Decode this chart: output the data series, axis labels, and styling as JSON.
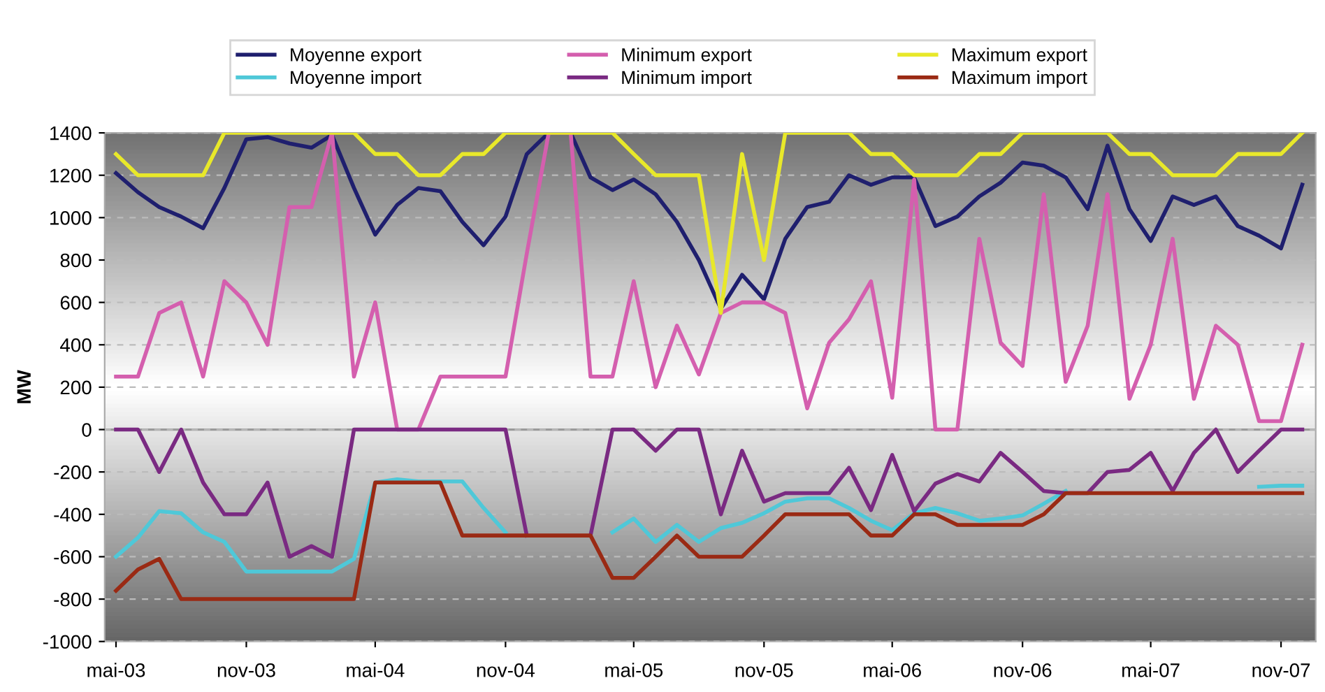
{
  "chart_data": {
    "type": "line",
    "ylabel": "MW",
    "x": [
      "2003-05",
      "2003-06",
      "2003-07",
      "2003-08",
      "2003-09",
      "2003-10",
      "2003-11",
      "2003-12",
      "2004-01",
      "2004-02",
      "2004-03",
      "2004-04",
      "2004-05",
      "2004-06",
      "2004-07",
      "2004-08",
      "2004-09",
      "2004-10",
      "2004-11",
      "2004-12",
      "2005-01",
      "2005-02",
      "2005-03",
      "2005-04",
      "2005-05",
      "2005-06",
      "2005-07",
      "2005-08",
      "2005-09",
      "2005-10",
      "2005-11",
      "2005-12",
      "2006-01",
      "2006-02",
      "2006-03",
      "2006-04",
      "2006-05",
      "2006-06",
      "2006-07",
      "2006-08",
      "2006-09",
      "2006-10",
      "2006-11",
      "2006-12",
      "2007-01",
      "2007-02",
      "2007-03",
      "2007-04",
      "2007-05",
      "2007-06",
      "2007-07",
      "2007-08",
      "2007-09",
      "2007-10",
      "2007-11",
      "2007-12"
    ],
    "series": [
      {
        "name": "Moyenne export",
        "color": "#1f1f6e",
        "values": [
          1210,
          1120,
          1050,
          1005,
          950,
          1140,
          1370,
          1380,
          1350,
          1330,
          1390,
          1140,
          920,
          1060,
          1140,
          1125,
          980,
          870,
          1005,
          1300,
          1400,
          1400,
          1190,
          1130,
          1180,
          1110,
          980,
          800,
          570,
          730,
          615,
          900,
          1050,
          1075,
          1200,
          1155,
          1190,
          1190,
          960,
          1005,
          1100,
          1165,
          1260,
          1245,
          1190,
          1040,
          1340,
          1040,
          890,
          1100,
          1060,
          1100,
          960,
          915,
          855,
          1155
        ]
      },
      {
        "name": "Minimum export",
        "color": "#d45fae",
        "values": [
          250,
          250,
          550,
          600,
          250,
          700,
          600,
          400,
          1050,
          1050,
          1400,
          250,
          600,
          0,
          0,
          250,
          250,
          250,
          250,
          830,
          1400,
          1400,
          250,
          250,
          700,
          200,
          490,
          260,
          550,
          600,
          600,
          550,
          100,
          410,
          520,
          700,
          150,
          1180,
          0,
          0,
          900,
          410,
          300,
          1110,
          225,
          490,
          1110,
          145,
          400,
          900,
          145,
          490,
          400,
          40,
          40,
          400
        ]
      },
      {
        "name": "Maximum export",
        "color": "#e8e82a",
        "values": [
          1300,
          1200,
          1200,
          1200,
          1200,
          1400,
          1400,
          1400,
          1400,
          1400,
          1400,
          1400,
          1300,
          1300,
          1200,
          1200,
          1300,
          1300,
          1400,
          1400,
          1400,
          1400,
          1400,
          1400,
          1300,
          1200,
          1200,
          1200,
          550,
          1300,
          800,
          1400,
          1400,
          1400,
          1400,
          1300,
          1300,
          1200,
          1200,
          1200,
          1300,
          1300,
          1400,
          1400,
          1400,
          1400,
          1400,
          1300,
          1300,
          1200,
          1200,
          1200,
          1300,
          1300,
          1300,
          1400
        ]
      },
      {
        "name": "Moyenne import",
        "color": "#4fc8d8",
        "values": [
          -600,
          -510,
          -385,
          -395,
          -485,
          -530,
          -670,
          -670,
          -670,
          -670,
          -670,
          -610,
          -250,
          -235,
          -245,
          -245,
          -245,
          -370,
          -485,
          null,
          null,
          null,
          null,
          -485,
          -420,
          -530,
          -450,
          -530,
          -465,
          -440,
          -395,
          -340,
          -325,
          -325,
          -370,
          -430,
          -475,
          -395,
          -370,
          -395,
          -430,
          -420,
          -405,
          -350,
          -290,
          null,
          null,
          null,
          null,
          null,
          null,
          null,
          null,
          -270,
          -265,
          -265
        ]
      },
      {
        "name": "Minimum import",
        "color": "#7a2a82",
        "values": [
          0,
          0,
          -200,
          0,
          -250,
          -400,
          -400,
          -250,
          -600,
          -550,
          -600,
          0,
          0,
          0,
          0,
          0,
          0,
          0,
          0,
          -500,
          null,
          null,
          -500,
          0,
          0,
          -100,
          0,
          0,
          -400,
          -100,
          -340,
          -300,
          -300,
          -300,
          -180,
          -380,
          -120,
          -385,
          -255,
          -210,
          -245,
          -110,
          -200,
          -290,
          -300,
          -300,
          -200,
          -190,
          -110,
          -290,
          -110,
          0,
          -200,
          -100,
          0,
          0
        ]
      },
      {
        "name": "Maximum import",
        "color": "#9a2a14",
        "values": [
          -760,
          -660,
          -610,
          -800,
          -800,
          -800,
          -800,
          -800,
          -800,
          -800,
          -800,
          -800,
          -250,
          -250,
          -250,
          -250,
          -500,
          -500,
          -500,
          -500,
          -500,
          -500,
          -500,
          -700,
          -700,
          -600,
          -500,
          -600,
          -600,
          -600,
          -500,
          -400,
          -400,
          -400,
          -400,
          -500,
          -500,
          -400,
          -400,
          -450,
          -450,
          -450,
          -450,
          -400,
          -300,
          -300,
          -300,
          -300,
          -300,
          -300,
          -300,
          -300,
          -300,
          -300,
          -300,
          -300
        ]
      }
    ],
    "xlim": [
      "2003-04-15",
      "2007-12-20"
    ],
    "xticks": [
      {
        "value": "2003-05",
        "label": "mai-03"
      },
      {
        "value": "2003-11",
        "label": "nov-03"
      },
      {
        "value": "2004-05",
        "label": "mai-04"
      },
      {
        "value": "2004-11",
        "label": "nov-04"
      },
      {
        "value": "2005-05",
        "label": "mai-05"
      },
      {
        "value": "2005-11",
        "label": "nov-05"
      },
      {
        "value": "2006-05",
        "label": "mai-06"
      },
      {
        "value": "2006-11",
        "label": "nov-06"
      },
      {
        "value": "2007-05",
        "label": "mai-07"
      },
      {
        "value": "2007-11",
        "label": "nov-07"
      }
    ],
    "ylim": [
      -1000,
      1400
    ],
    "yticks": [
      -1000,
      -800,
      -600,
      -400,
      -200,
      0,
      200,
      400,
      600,
      800,
      1000,
      1200,
      1400
    ],
    "ref_lines": [
      {
        "axis": "y",
        "value": 0,
        "color": "#9a9a9a"
      }
    ],
    "grid": "y",
    "legend": "top",
    "line_style": "solid",
    "marker": "none"
  }
}
